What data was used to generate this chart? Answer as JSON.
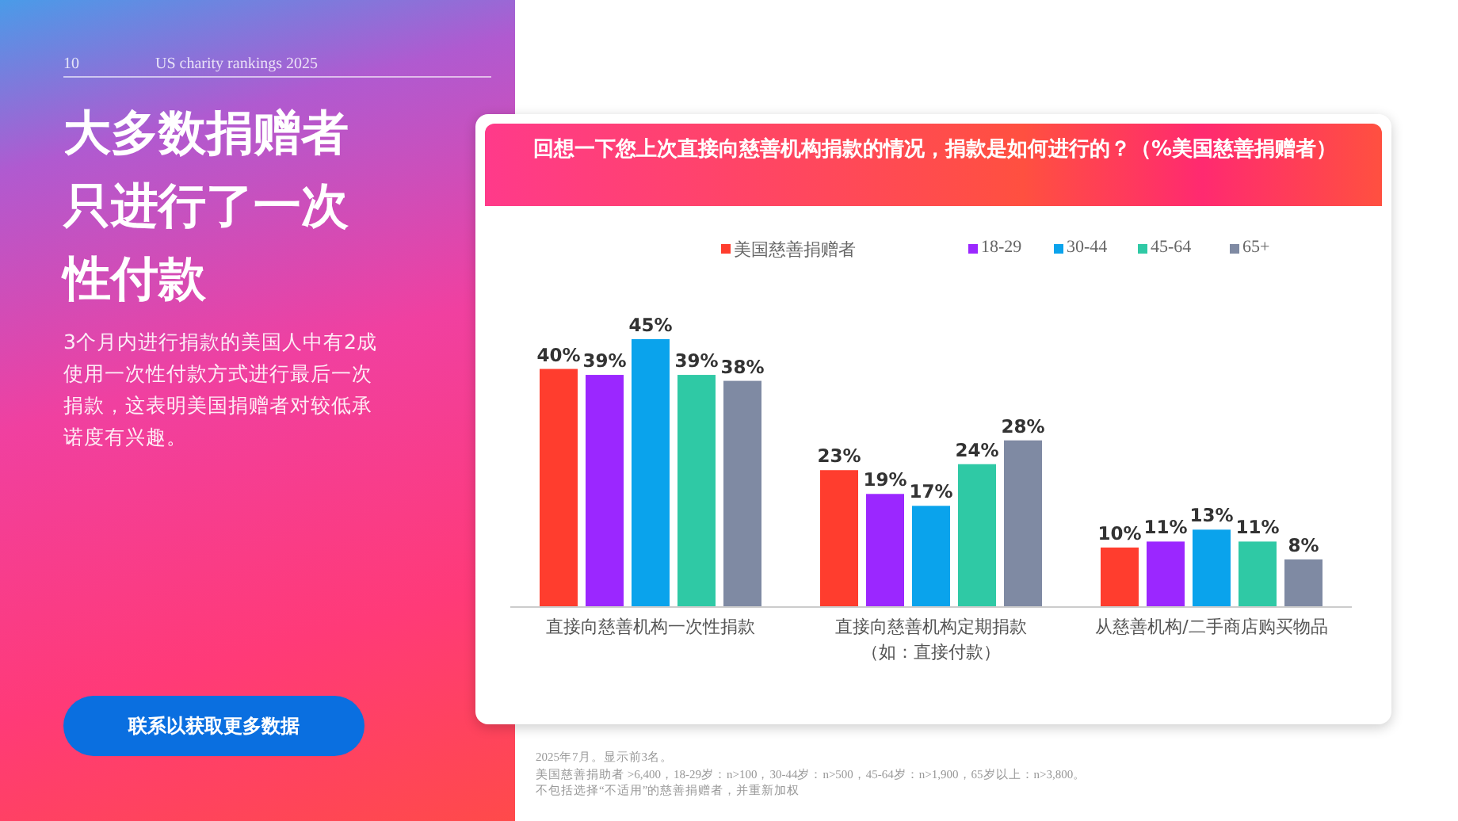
{
  "chart_data": {
    "type": "bar",
    "title": "大多数捐赠者只进行了一次性付款",
    "subtitle": "回想一下您上次直接向慈善机构捐款的情况，捐款是如何进行的？（%美国慈善捐赠者）",
    "categories": [
      "直接向慈善机构一次性捐款",
      "直接向慈善机构定期捐款（如：直接付款）",
      "从慈善机构/二手商店购买物品"
    ],
    "series": [
      {
        "name": "美国慈善捐赠者",
        "color": "#ff3d2e",
        "values": [
          40,
          23,
          10
        ],
        "value_labels": [
          "40%",
          "23%",
          "10%"
        ]
      },
      {
        "name": "18-29",
        "color": "#9b27ff",
        "values": [
          39,
          19,
          11
        ],
        "value_labels": [
          "39%",
          "19%",
          "11%"
        ]
      },
      {
        "name": "30-44",
        "color": "#0aa3ec",
        "values": [
          45,
          17,
          13
        ],
        "value_labels": [
          "45%",
          "17%",
          "13%"
        ]
      },
      {
        "name": "45-64",
        "color": "#2fc9a5",
        "values": [
          39,
          24,
          11
        ],
        "value_labels": [
          "39%",
          "24%",
          "11%"
        ]
      },
      {
        "name": "65+",
        "color": "#7f8aa3",
        "values": [
          38,
          28,
          8
        ],
        "value_labels": [
          "38%",
          "28%",
          "8%"
        ]
      }
    ],
    "legend": "top",
    "annotations": [
      "10",
      "US charity rankings 2025",
      "3个月内进行捐款的美国人中有2成使用一次性付款方式进行最后一次捐款，这表明美国捐赠者对较低承诺度有兴趣。",
      "联系以获取更多数据",
      "2025年7月。显示前3名。",
      "美国慈善捐助者 >6,400，18-29岁：n>100，30-44岁：n>500，45-64岁：n>1,900，65岁以上：n>3,800。",
      "不包括选择“不适用”的慈善捐赠者，并重新加权"
    ]
  }
}
